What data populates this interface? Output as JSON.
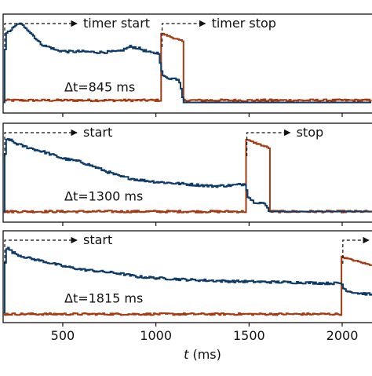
{
  "chart_data": {
    "type": "line",
    "xlabel_italic": "t",
    "xlabel_rest": " (ms)",
    "xlim": [
      180,
      2160
    ],
    "xticks": [
      500,
      1000,
      1500,
      2000
    ],
    "xtick_labels": [
      "500",
      "1000",
      "1500",
      "2000"
    ],
    "ylim": [
      -0.15,
      1.25
    ],
    "colors": {
      "blue": "#0d3a66",
      "red": "#a33a12",
      "axis": "#111111"
    },
    "panels": [
      {
        "delta_label": "Δt=845 ms",
        "start_label": "timer start",
        "stop_label": "timer stop",
        "start_t": 180,
        "stop_t": 1025,
        "drop_t": 1145,
        "blue": {
          "x": [
            180,
            190,
            205,
            230,
            260,
            300,
            320,
            345,
            370,
            400,
            430,
            460,
            520,
            600,
            700,
            800,
            860,
            900,
            940,
            970,
            1000,
            1015,
            1025,
            1040,
            1080,
            1120,
            1133,
            1145,
            1150,
            2160
          ],
          "y": [
            0.0,
            0.95,
            1.0,
            1.05,
            1.12,
            1.06,
            1.0,
            0.93,
            0.85,
            0.8,
            0.78,
            0.74,
            0.72,
            0.72,
            0.71,
            0.72,
            0.79,
            0.77,
            0.73,
            0.7,
            0.7,
            0.7,
            0.45,
            0.36,
            0.34,
            0.33,
            0.2,
            0.0,
            0.0,
            0.0
          ]
        },
        "red": {
          "x": [
            180,
            2160
          ],
          "y": [
            0.03,
            0.03
          ],
          "pulse": {
            "t0": 1025,
            "t1": 1145,
            "start_level": 0.98,
            "end_level": 0.86
          }
        }
      },
      {
        "delta_label": "Δt=1300 ms",
        "start_label": "start",
        "stop_label": "stop",
        "start_t": 180,
        "stop_t": 1480,
        "drop_t": 1605,
        "blue": {
          "x": [
            180,
            190,
            205,
            240,
            280,
            320,
            400,
            500,
            600,
            700,
            800,
            900,
            1000,
            1100,
            1200,
            1300,
            1400,
            1440,
            1470,
            1480,
            1490,
            1520,
            1570,
            1590,
            1605,
            1610,
            2160
          ],
          "y": [
            0.0,
            1.0,
            1.03,
            0.97,
            0.93,
            0.9,
            0.84,
            0.75,
            0.7,
            0.6,
            0.5,
            0.45,
            0.42,
            0.4,
            0.38,
            0.36,
            0.37,
            0.38,
            0.39,
            0.39,
            0.22,
            0.14,
            0.12,
            0.08,
            0.0,
            0.0,
            0.0
          ]
        },
        "red": {
          "x": [
            180,
            2160
          ],
          "y": [
            0.0,
            0.0
          ],
          "pulse": {
            "t0": 1480,
            "t1": 1605,
            "start_level": 1.02,
            "end_level": 0.9
          }
        }
      },
      {
        "delta_label": "Δt=1815 ms",
        "start_label": "start",
        "stop_label": "",
        "start_t": 180,
        "stop_t": 1995,
        "drop_t": 2120,
        "blue": {
          "x": [
            180,
            190,
            200,
            230,
            270,
            320,
            400,
            500,
            600,
            700,
            800,
            900,
            1000,
            1200,
            1400,
            1600,
            1800,
            1900,
            1995,
            2000,
            2030,
            2080,
            2160
          ],
          "y": [
            0.0,
            0.97,
            0.99,
            0.92,
            0.87,
            0.83,
            0.78,
            0.71,
            0.66,
            0.63,
            0.6,
            0.55,
            0.53,
            0.5,
            0.48,
            0.47,
            0.46,
            0.45,
            0.45,
            0.38,
            0.33,
            0.3,
            0.28
          ]
        },
        "red": {
          "x": [
            180,
            2160
          ],
          "y": [
            -0.02,
            -0.02
          ],
          "pulse": {
            "t0": 1995,
            "t1": 2160,
            "start_level": 0.85,
            "end_level": 0.72
          }
        }
      }
    ]
  }
}
